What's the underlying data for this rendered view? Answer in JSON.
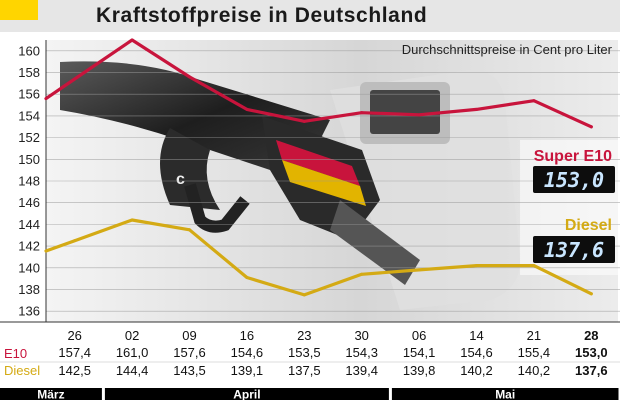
{
  "header": {
    "title": "Kraftstoffpreise in Deutschland"
  },
  "colors": {
    "e10": "#c8143c",
    "diesel": "#d4aa14",
    "header_bg": "#e6e6e6",
    "logo": "#ffd500",
    "month_bar": "#000000",
    "lcd_digits": "#c9e6ff"
  },
  "chart_data": {
    "type": "line",
    "subtitle": "Durchschnittspreise in Cent pro Liter",
    "ylim": [
      135,
      161
    ],
    "yticks": [
      136,
      138,
      140,
      142,
      144,
      146,
      148,
      150,
      152,
      154,
      156,
      158,
      160
    ],
    "grid": true,
    "categories": [
      "26",
      "02",
      "09",
      "16",
      "23",
      "30",
      "06",
      "14",
      "21",
      "28"
    ],
    "months": [
      {
        "label": "März",
        "from": 0,
        "to": 0
      },
      {
        "label": "April",
        "from": 1,
        "to": 5
      },
      {
        "label": "Mai",
        "from": 6,
        "to": 9
      }
    ],
    "series": [
      {
        "key": "e10",
        "name": "Super E10",
        "row_label": "E10",
        "values": [
          157.4,
          161.0,
          157.6,
          154.6,
          153.5,
          154.3,
          154.1,
          154.6,
          155.4,
          153.0
        ],
        "labels": [
          "157,4",
          "161,0",
          "157,6",
          "154,6",
          "153,5",
          "154,3",
          "154,1",
          "154,6",
          "155,4",
          "153,0"
        ],
        "display": "153,0"
      },
      {
        "key": "diesel",
        "name": "Diesel",
        "row_label": "Diesel",
        "values": [
          142.5,
          144.4,
          143.5,
          139.1,
          137.5,
          139.4,
          139.8,
          140.2,
          140.2,
          137.6
        ],
        "labels": [
          "142,5",
          "144,4",
          "143,5",
          "139,1",
          "137,5",
          "139,4",
          "139,8",
          "140,2",
          "140,2",
          "137,6"
        ],
        "display": "137,6"
      }
    ]
  }
}
